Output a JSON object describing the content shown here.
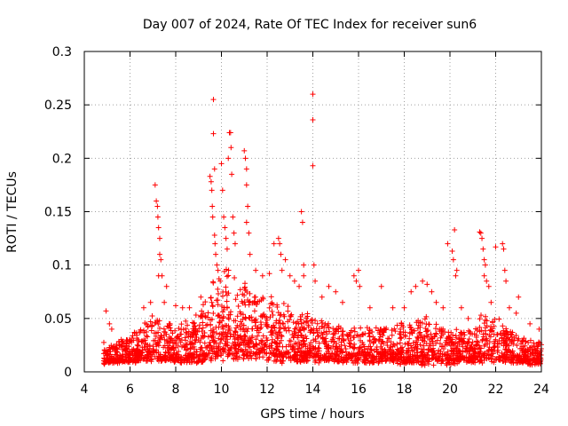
{
  "chart_data": {
    "type": "scatter",
    "title": "Day 007 of 2024, Rate Of TEC Index for receiver sun6",
    "xlabel": "GPS time / hours",
    "ylabel": "ROTI / TECUs",
    "xlim": [
      4,
      24
    ],
    "ylim": [
      0,
      0.3
    ],
    "x_ticks": [
      4,
      6,
      8,
      10,
      12,
      14,
      16,
      18,
      20,
      22,
      24
    ],
    "y_ticks": [
      0,
      0.05,
      0.1,
      0.15,
      0.2,
      0.25,
      0.3
    ],
    "x_tick_labels": [
      "4",
      "6",
      "8",
      "10",
      "12",
      "14",
      "16",
      "18",
      "20",
      "22",
      "24"
    ],
    "y_tick_labels": [
      "0",
      "0.05",
      "0.1",
      "0.15",
      "0.2",
      "0.25",
      "0.3"
    ],
    "grid": true,
    "marker": "plus",
    "marker_color": "#ff0000",
    "series": [
      {
        "name": "ROTI",
        "data_range_hours": [
          4.85,
          24
        ],
        "baseline_envelope": [
          [
            4.9,
            0.008,
            0.025
          ],
          [
            5.5,
            0.008,
            0.03
          ],
          [
            6.0,
            0.008,
            0.035
          ],
          [
            6.5,
            0.008,
            0.045
          ],
          [
            7.0,
            0.008,
            0.055
          ],
          [
            7.5,
            0.008,
            0.05
          ],
          [
            8.0,
            0.008,
            0.045
          ],
          [
            8.5,
            0.008,
            0.05
          ],
          [
            9.0,
            0.008,
            0.06
          ],
          [
            9.5,
            0.008,
            0.08
          ],
          [
            10.0,
            0.01,
            0.1
          ],
          [
            10.5,
            0.01,
            0.1
          ],
          [
            11.0,
            0.01,
            0.09
          ],
          [
            11.5,
            0.01,
            0.08
          ],
          [
            12.0,
            0.01,
            0.07
          ],
          [
            12.5,
            0.008,
            0.075
          ],
          [
            13.0,
            0.008,
            0.065
          ],
          [
            13.5,
            0.008,
            0.06
          ],
          [
            14.0,
            0.008,
            0.055
          ],
          [
            14.5,
            0.008,
            0.05
          ],
          [
            15.0,
            0.008,
            0.045
          ],
          [
            15.5,
            0.008,
            0.045
          ],
          [
            16.0,
            0.008,
            0.045
          ],
          [
            16.5,
            0.008,
            0.045
          ],
          [
            17.0,
            0.008,
            0.045
          ],
          [
            17.5,
            0.008,
            0.045
          ],
          [
            18.0,
            0.006,
            0.05
          ],
          [
            18.5,
            0.006,
            0.05
          ],
          [
            19.0,
            0.006,
            0.055
          ],
          [
            19.5,
            0.006,
            0.045
          ],
          [
            20.0,
            0.006,
            0.04
          ],
          [
            20.5,
            0.008,
            0.04
          ],
          [
            21.0,
            0.008,
            0.045
          ],
          [
            21.5,
            0.008,
            0.06
          ],
          [
            22.0,
            0.008,
            0.055
          ],
          [
            22.5,
            0.008,
            0.045
          ],
          [
            23.0,
            0.008,
            0.035
          ],
          [
            23.5,
            0.006,
            0.03
          ],
          [
            24.0,
            0.006,
            0.03
          ]
        ],
        "outliers": [
          [
            4.95,
            0.057
          ],
          [
            5.1,
            0.045
          ],
          [
            5.2,
            0.04
          ],
          [
            6.6,
            0.06
          ],
          [
            6.9,
            0.065
          ],
          [
            7.1,
            0.175
          ],
          [
            7.15,
            0.16
          ],
          [
            7.2,
            0.155
          ],
          [
            7.22,
            0.145
          ],
          [
            7.25,
            0.135
          ],
          [
            7.3,
            0.125
          ],
          [
            7.3,
            0.11
          ],
          [
            7.35,
            0.105
          ],
          [
            7.25,
            0.09
          ],
          [
            7.4,
            0.09
          ],
          [
            7.5,
            0.065
          ],
          [
            7.6,
            0.08
          ],
          [
            8.0,
            0.062
          ],
          [
            8.3,
            0.06
          ],
          [
            8.6,
            0.06
          ],
          [
            9.1,
            0.07
          ],
          [
            9.5,
            0.183
          ],
          [
            9.55,
            0.178
          ],
          [
            9.58,
            0.17
          ],
          [
            9.6,
            0.155
          ],
          [
            9.62,
            0.145
          ],
          [
            9.65,
            0.255
          ],
          [
            9.65,
            0.223
          ],
          [
            9.7,
            0.19
          ],
          [
            9.7,
            0.128
          ],
          [
            9.72,
            0.12
          ],
          [
            9.75,
            0.11
          ],
          [
            9.8,
            0.1
          ],
          [
            9.85,
            0.095
          ],
          [
            9.95,
            0.085
          ],
          [
            10.0,
            0.195
          ],
          [
            10.05,
            0.17
          ],
          [
            10.1,
            0.145
          ],
          [
            10.15,
            0.135
          ],
          [
            10.2,
            0.125
          ],
          [
            10.25,
            0.115
          ],
          [
            10.3,
            0.2
          ],
          [
            10.35,
            0.224
          ],
          [
            10.4,
            0.224
          ],
          [
            10.42,
            0.21
          ],
          [
            10.45,
            0.185
          ],
          [
            10.5,
            0.145
          ],
          [
            10.55,
            0.13
          ],
          [
            10.6,
            0.12
          ],
          [
            11.0,
            0.207
          ],
          [
            11.05,
            0.2
          ],
          [
            11.1,
            0.19
          ],
          [
            11.1,
            0.175
          ],
          [
            11.15,
            0.155
          ],
          [
            11.2,
            0.13
          ],
          [
            11.25,
            0.11
          ],
          [
            11.1,
            0.14
          ],
          [
            11.5,
            0.095
          ],
          [
            11.8,
            0.09
          ],
          [
            12.1,
            0.092
          ],
          [
            12.3,
            0.12
          ],
          [
            12.5,
            0.125
          ],
          [
            12.55,
            0.12
          ],
          [
            12.6,
            0.11
          ],
          [
            12.65,
            0.095
          ],
          [
            12.8,
            0.105
          ],
          [
            13.0,
            0.09
          ],
          [
            13.2,
            0.085
          ],
          [
            13.4,
            0.08
          ],
          [
            13.5,
            0.15
          ],
          [
            13.55,
            0.14
          ],
          [
            13.6,
            0.1
          ],
          [
            13.6,
            0.09
          ],
          [
            14.0,
            0.26
          ],
          [
            14.0,
            0.236
          ],
          [
            14.0,
            0.193
          ],
          [
            14.05,
            0.1
          ],
          [
            14.1,
            0.085
          ],
          [
            14.4,
            0.07
          ],
          [
            14.7,
            0.08
          ],
          [
            15.0,
            0.075
          ],
          [
            15.3,
            0.065
          ],
          [
            15.8,
            0.09
          ],
          [
            15.9,
            0.085
          ],
          [
            16.0,
            0.095
          ],
          [
            16.05,
            0.08
          ],
          [
            16.5,
            0.06
          ],
          [
            17.0,
            0.08
          ],
          [
            17.5,
            0.06
          ],
          [
            18.0,
            0.06
          ],
          [
            18.3,
            0.075
          ],
          [
            18.5,
            0.08
          ],
          [
            18.8,
            0.085
          ],
          [
            19.0,
            0.082
          ],
          [
            19.2,
            0.075
          ],
          [
            19.4,
            0.065
          ],
          [
            19.7,
            0.06
          ],
          [
            19.9,
            0.12
          ],
          [
            20.1,
            0.113
          ],
          [
            20.15,
            0.105
          ],
          [
            20.2,
            0.133
          ],
          [
            20.25,
            0.09
          ],
          [
            20.3,
            0.095
          ],
          [
            20.5,
            0.06
          ],
          [
            20.8,
            0.05
          ],
          [
            21.3,
            0.131
          ],
          [
            21.35,
            0.13
          ],
          [
            21.4,
            0.125
          ],
          [
            21.45,
            0.115
          ],
          [
            21.5,
            0.105
          ],
          [
            21.55,
            0.1
          ],
          [
            21.5,
            0.09
          ],
          [
            21.6,
            0.085
          ],
          [
            21.7,
            0.08
          ],
          [
            21.8,
            0.065
          ],
          [
            22.0,
            0.117
          ],
          [
            22.3,
            0.12
          ],
          [
            22.35,
            0.115
          ],
          [
            22.4,
            0.095
          ],
          [
            22.45,
            0.085
          ],
          [
            22.6,
            0.06
          ],
          [
            22.9,
            0.055
          ],
          [
            23.0,
            0.07
          ],
          [
            23.5,
            0.045
          ],
          [
            23.9,
            0.04
          ]
        ]
      }
    ]
  }
}
